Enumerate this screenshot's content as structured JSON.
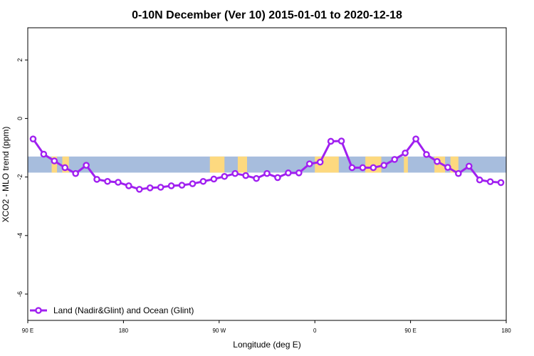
{
  "chart_data": {
    "type": "line",
    "title": "0-10N December (Ver 10)   2015-01-01 to 2020-12-18",
    "xlabel": "Longitude (deg E)",
    "ylabel": "XCO2 - MLO trend (ppm)",
    "xlim": [
      90,
      450
    ],
    "ylim": [
      -6.9,
      3.1
    ],
    "x_ticks": [
      90,
      162,
      234,
      306,
      378,
      450
    ],
    "x_tick_labels": [
      "90 E",
      "180",
      "90 W",
      "0",
      "90 E",
      "180"
    ],
    "y_ticks": [
      -6,
      -4,
      -2,
      0,
      2
    ],
    "y_tick_labels": [
      "-6",
      "-4",
      "-2",
      "0",
      "2"
    ],
    "series": [
      {
        "name": "Land (Nadir&Glint) and Ocean (Glint)",
        "color": "#a020f0",
        "x": [
          94,
          102,
          110,
          118,
          126,
          134,
          142,
          150,
          158,
          166,
          174,
          182,
          190,
          198,
          206,
          214,
          222,
          230,
          238,
          246,
          254,
          262,
          270,
          278,
          286,
          294,
          302,
          310,
          318,
          326,
          334,
          342,
          350,
          358,
          366,
          374,
          382,
          390,
          398,
          406,
          414,
          422,
          430,
          438,
          446
        ],
        "y": [
          -0.7,
          -1.22,
          -1.45,
          -1.68,
          -1.88,
          -1.6,
          -2.08,
          -2.15,
          -2.18,
          -2.3,
          -2.42,
          -2.37,
          -2.35,
          -2.3,
          -2.28,
          -2.23,
          -2.15,
          -2.07,
          -1.98,
          -1.88,
          -1.95,
          -2.05,
          -1.88,
          -2.02,
          -1.86,
          -1.86,
          -1.55,
          -1.49,
          -0.78,
          -0.77,
          -1.68,
          -1.68,
          -1.68,
          -1.6,
          -1.4,
          -1.18,
          -0.7,
          -1.23,
          -1.47,
          -1.67,
          -1.88,
          -1.63,
          -2.1,
          -2.16,
          -2.19
        ]
      }
    ],
    "background_map": {
      "ocean_color": "#a7bddd",
      "land_color": "#fdd97f",
      "latitude_band_y": [
        -1.3,
        -1.85
      ],
      "land_segments": [
        [
          108,
          112
        ],
        [
          116,
          121
        ],
        [
          227,
          238
        ],
        [
          248,
          255
        ],
        [
          306,
          324
        ],
        [
          344,
          356
        ],
        [
          373,
          376
        ],
        [
          396,
          404
        ],
        [
          408,
          414
        ]
      ]
    },
    "grid": false,
    "legend_position": "bottom-left"
  }
}
